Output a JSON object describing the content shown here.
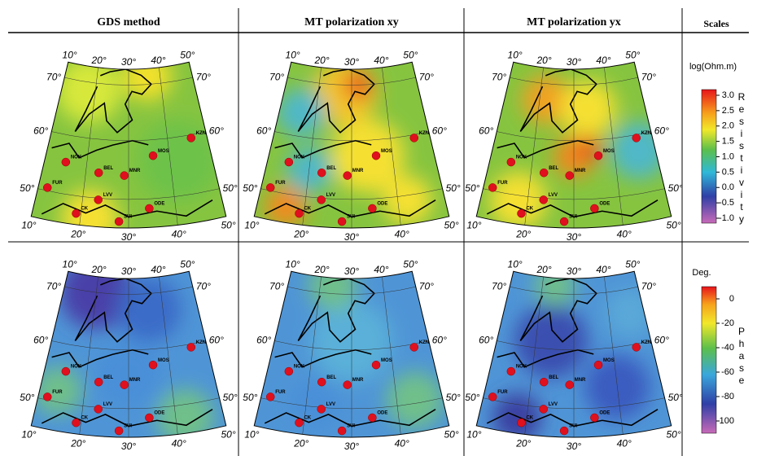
{
  "columns": [
    "GDS method",
    "MT polarization xy",
    "MT polarization yx",
    "Scales"
  ],
  "graticule": {
    "meridians": [
      "10°",
      "20°",
      "30°",
      "40°",
      "50°"
    ],
    "parallels": [
      "70°",
      "60°",
      "50°"
    ]
  },
  "stations": [
    "NOK",
    "BEL",
    "MNR",
    "MOS",
    "KZN",
    "LVV",
    "ODE",
    "SUI",
    "CK",
    "FUR"
  ],
  "scales": [
    {
      "unit": "log(Ohm.m)",
      "name": "Resistivity",
      "ticks": [
        "3.0",
        "2.5",
        "2.0",
        "1.5",
        "1.0",
        "0.5",
        "0.0",
        "-0.5",
        "-1.0"
      ]
    },
    {
      "unit": "Deg.",
      "name": "Phase",
      "ticks": [
        "0",
        "-20",
        "-40",
        "-60",
        "-80",
        "-100"
      ]
    }
  ]
}
